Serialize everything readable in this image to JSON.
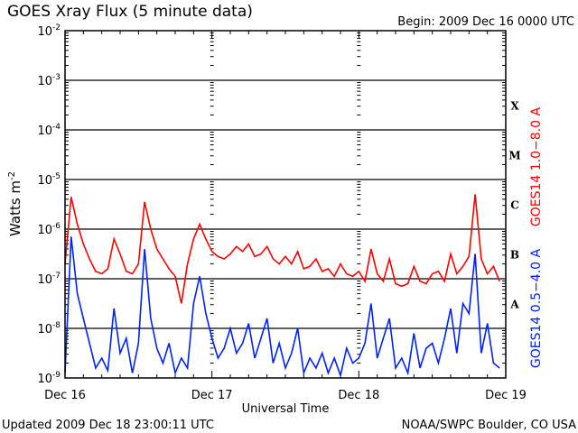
{
  "chart_data": {
    "type": "line",
    "title": "GOES Xray Flux (5 minute data)",
    "begin_label": "Begin:  2009 Dec 16 0000 UTC",
    "xlabel": "Universal Time",
    "ylabel_base": "Watts m",
    "ylabel_exp": "-2",
    "x_unit": "hours since 2009-12-16 00:00 UTC",
    "xlim": [
      0,
      72
    ],
    "x_ticks": [
      {
        "hour": 0,
        "label": "Dec 16"
      },
      {
        "hour": 24,
        "label": "Dec 17"
      },
      {
        "hour": 48,
        "label": "Dec 18"
      },
      {
        "hour": 72,
        "label": "Dec 19"
      }
    ],
    "y_scale": "log",
    "ylim_log10": [
      -9,
      -2
    ],
    "y_ticks": [
      {
        "exp": -2,
        "base": "10",
        "sup": "-2"
      },
      {
        "exp": -3,
        "base": "10",
        "sup": "-3"
      },
      {
        "exp": -4,
        "base": "10",
        "sup": "-4"
      },
      {
        "exp": -5,
        "base": "10",
        "sup": "-5"
      },
      {
        "exp": -6,
        "base": "10",
        "sup": "-6"
      },
      {
        "exp": -7,
        "base": "10",
        "sup": "-7"
      },
      {
        "exp": -8,
        "base": "10",
        "sup": "-8"
      },
      {
        "exp": -9,
        "base": "10",
        "sup": "-9"
      }
    ],
    "flare_classes": [
      {
        "label": "X",
        "exp": -3.5
      },
      {
        "label": "M",
        "exp": -4.5
      },
      {
        "label": "C",
        "exp": -5.5
      },
      {
        "label": "B",
        "exp": -6.5
      },
      {
        "label": "A",
        "exp": -7.5
      }
    ],
    "gridlines_log10": [
      -3,
      -4,
      -5,
      -6,
      -7,
      -8
    ],
    "series": [
      {
        "name": "GOES14 1.0−8.0 A",
        "color": "#ff0000",
        "value_unit": "log10 W m^-2",
        "x": [
          0,
          1,
          2,
          3,
          4,
          5,
          6,
          7,
          8,
          9,
          10,
          11,
          12,
          13,
          14,
          15,
          16,
          17,
          18,
          19,
          20,
          21,
          22,
          23,
          24,
          25,
          26,
          27,
          28,
          29,
          30,
          31,
          32,
          33,
          34,
          35,
          36,
          37,
          38,
          39,
          40,
          41,
          42,
          43,
          44,
          45,
          46,
          47,
          48,
          49,
          50,
          51,
          52,
          53,
          54,
          55,
          56,
          57,
          58,
          59,
          60,
          61,
          62,
          63,
          64,
          65,
          66,
          67,
          68,
          69,
          70,
          71
        ],
        "values": [
          -6.7,
          -5.35,
          -5.9,
          -6.3,
          -6.6,
          -6.85,
          -6.9,
          -6.8,
          -6.2,
          -6.5,
          -6.85,
          -6.9,
          -6.7,
          -5.45,
          -6.0,
          -6.4,
          -6.6,
          -6.8,
          -6.95,
          -7.5,
          -6.7,
          -6.2,
          -5.9,
          -6.2,
          -6.45,
          -6.55,
          -6.6,
          -6.5,
          -6.35,
          -6.45,
          -6.3,
          -6.55,
          -6.5,
          -6.35,
          -6.6,
          -6.7,
          -6.55,
          -6.7,
          -6.45,
          -6.8,
          -6.75,
          -6.6,
          -6.85,
          -6.8,
          -6.95,
          -6.7,
          -6.9,
          -6.95,
          -6.85,
          -7.05,
          -6.4,
          -6.9,
          -7.05,
          -6.6,
          -7.1,
          -7.15,
          -7.1,
          -6.75,
          -7.05,
          -7.1,
          -6.9,
          -6.85,
          -7.05,
          -6.5,
          -6.9,
          -6.75,
          -6.55,
          -5.3,
          -6.6,
          -6.9,
          -6.75,
          -7.05
        ]
      },
      {
        "name": "GOES14 0.5−4.0 A",
        "color": "#0022ff",
        "value_unit": "log10 W m^-2",
        "x": [
          0,
          1,
          2,
          3,
          4,
          5,
          6,
          7,
          8,
          9,
          10,
          11,
          12,
          13,
          14,
          15,
          16,
          17,
          18,
          19,
          20,
          21,
          22,
          23,
          24,
          25,
          26,
          27,
          28,
          29,
          30,
          31,
          32,
          33,
          34,
          35,
          36,
          37,
          38,
          39,
          40,
          41,
          42,
          43,
          44,
          45,
          46,
          47,
          48,
          49,
          50,
          51,
          52,
          53,
          54,
          55,
          56,
          57,
          58,
          59,
          60,
          61,
          62,
          63,
          64,
          65,
          66,
          67,
          68,
          69,
          70,
          71
        ],
        "values": [
          -8.9,
          -6.15,
          -7.3,
          -7.8,
          -8.3,
          -8.8,
          -8.6,
          -8.85,
          -7.6,
          -8.5,
          -8.2,
          -8.9,
          -8.3,
          -6.4,
          -7.8,
          -8.4,
          -8.7,
          -8.3,
          -8.9,
          -8.6,
          -8.8,
          -7.5,
          -6.95,
          -7.7,
          -8.2,
          -8.6,
          -8.4,
          -8.0,
          -8.5,
          -8.3,
          -7.9,
          -8.6,
          -8.2,
          -7.8,
          -8.7,
          -8.3,
          -8.8,
          -8.5,
          -8.0,
          -8.9,
          -8.6,
          -8.8,
          -8.5,
          -8.9,
          -8.6,
          -8.95,
          -8.4,
          -8.7,
          -8.6,
          -8.3,
          -7.5,
          -8.6,
          -8.2,
          -7.8,
          -8.8,
          -8.6,
          -8.9,
          -8.1,
          -8.8,
          -8.4,
          -8.3,
          -8.7,
          -8.2,
          -7.6,
          -8.5,
          -7.5,
          -7.7,
          -6.5,
          -8.5,
          -7.9,
          -8.7,
          -8.8
        ]
      }
    ]
  },
  "footer": {
    "updated": "Updated 2009 Dec 18 23:00:11 UTC",
    "credit": "NOAA/SWPC Boulder, CO USA"
  }
}
